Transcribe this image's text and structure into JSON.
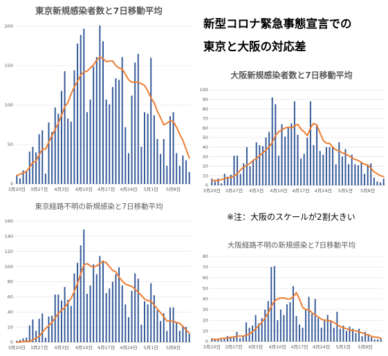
{
  "headline": {
    "line1": "新型コロナ緊急事態宣言での",
    "line2": "東京と大阪の対応差"
  },
  "note": "※注：大阪のスケールが2割大きい",
  "chart_data": [
    {
      "id": "tokyo-new",
      "type": "bar",
      "title": "東京新規感染者数と7日移動平均",
      "ylim": [
        0,
        200
      ],
      "yticks": [
        "0",
        "50",
        "100",
        "150",
        "200"
      ],
      "xtick_labels": [
        "3月20日",
        "3月27日",
        "4月3日",
        "4月10日",
        "4月17日",
        "4月24日",
        "5月1日",
        "5月8日"
      ],
      "grid": true,
      "series": [
        {
          "type": "bar",
          "color": "#2f5597",
          "values": [
            11,
            7,
            17,
            16,
            41,
            47,
            40,
            63,
            68,
            13,
            78,
            66,
            97,
            89,
            118,
            143,
            83,
            79,
            144,
            178,
            189,
            197,
            91,
            107,
            149,
            161,
            201,
            181,
            107,
            101,
            123,
            134,
            132,
            161,
            72,
            39,
            112,
            154,
            165,
            47,
            91,
            89,
            160,
            87,
            57,
            38,
            57,
            23,
            86,
            91,
            39,
            23,
            36,
            30,
            15
          ]
        },
        {
          "type": "line",
          "color": "#ed7d31",
          "values": [
            11,
            12,
            14,
            16,
            21,
            27,
            29,
            37,
            44,
            44,
            53,
            61,
            69,
            77,
            87,
            98,
            103,
            114,
            123,
            130,
            138,
            142,
            143,
            147,
            151,
            157,
            161,
            159,
            155,
            156,
            156,
            150,
            147,
            146,
            139,
            132,
            129,
            129,
            129,
            127,
            125,
            118,
            109,
            103,
            92,
            84,
            75,
            77,
            80,
            79,
            72,
            63,
            55,
            44,
            33
          ]
        }
      ]
    },
    {
      "id": "tokyo-unknown",
      "type": "bar",
      "title": "東京経路不明の新規感染と7日移動平均",
      "ylim": [
        0,
        160
      ],
      "yticks": [
        "0",
        "20",
        "40",
        "60",
        "80",
        "100",
        "120",
        "140",
        "160"
      ],
      "xtick_labels": [
        "3月20日",
        "3月27日",
        "4月3日",
        "4月10日",
        "4月17日",
        "4月24日",
        "5月1日",
        "5月8日"
      ],
      "grid": true,
      "series": [
        {
          "type": "bar",
          "color": "#2f5597",
          "values": [
            2,
            3,
            5,
            6,
            22,
            30,
            15,
            31,
            38,
            6,
            34,
            35,
            63,
            63,
            55,
            73,
            56,
            48,
            91,
            105,
            128,
            149,
            64,
            75,
            103,
            90,
            114,
            108,
            65,
            71,
            80,
            90,
            99,
            75,
            50,
            33,
            68,
            91,
            84,
            23,
            54,
            50,
            78,
            62,
            42,
            28,
            38,
            15,
            46,
            46,
            27,
            15,
            21,
            20,
            11
          ]
        },
        {
          "type": "line",
          "color": "#ed7d31",
          "values": [
            0,
            0,
            1,
            1,
            1,
            3,
            5,
            8,
            13,
            18,
            22,
            26,
            32,
            38,
            42,
            46,
            52,
            58,
            67,
            78,
            90,
            102,
            104,
            101,
            99,
            101,
            104,
            107,
            105,
            100,
            95,
            93,
            86,
            81,
            77,
            75,
            74,
            70,
            66,
            62,
            57,
            55,
            54,
            49,
            44,
            39,
            34,
            28,
            28,
            28,
            26,
            25,
            21,
            16,
            12
          ]
        }
      ]
    },
    {
      "id": "osaka-new",
      "type": "bar",
      "title": "大阪新規感染者数と7日移動平均",
      "ylim": [
        0,
        100
      ],
      "yticks": [
        "0",
        "10",
        "20",
        "30",
        "40",
        "50",
        "60",
        "70",
        "80",
        "90",
        "100"
      ],
      "xtick_labels": [
        "3月20日",
        "3月27日",
        "4月3日",
        "4月10日",
        "4月17日",
        "4月24日",
        "5月1日",
        "5月8日"
      ],
      "grid": true,
      "series": [
        {
          "type": "bar",
          "color": "#2f5597",
          "values": [
            7,
            4,
            7,
            2,
            12,
            9,
            11,
            31,
            31,
            12,
            23,
            40,
            20,
            27,
            45,
            42,
            41,
            50,
            56,
            92,
            85,
            31,
            64,
            51,
            60,
            65,
            88,
            53,
            28,
            33,
            50,
            88,
            42,
            64,
            36,
            32,
            40,
            40,
            40,
            22,
            45,
            30,
            38,
            22,
            32,
            22,
            21,
            24,
            12,
            22,
            23,
            8,
            4,
            3,
            7
          ]
        },
        {
          "type": "line",
          "color": "#ed7d31",
          "values": [
            5,
            5,
            5,
            6,
            7,
            8,
            8,
            10,
            12,
            16,
            19,
            21,
            23,
            26,
            28,
            31,
            34,
            37,
            40,
            45,
            52,
            56,
            58,
            60,
            61,
            60,
            62,
            64,
            59,
            56,
            52,
            60,
            65,
            63,
            55,
            47,
            44,
            44,
            40,
            37,
            36,
            34,
            33,
            31,
            29,
            27,
            26,
            24,
            22,
            21,
            18,
            14,
            12,
            10,
            9
          ]
        }
      ]
    },
    {
      "id": "osaka-unknown",
      "type": "bar",
      "title": "大阪経路不明の新規感染と7日移動平均",
      "ylim": [
        0,
        80
      ],
      "yticks": [
        "0",
        "10",
        "20",
        "30",
        "40",
        "50",
        "60",
        "70",
        "80"
      ],
      "xtick_labels": [
        "3月20日",
        "3月27日",
        "4月3日",
        "4月10日",
        "4月17日",
        "4月24日",
        "5月1日",
        "5月8日"
      ],
      "grid": true,
      "series": [
        {
          "type": "bar",
          "color": "#2f5597",
          "values": [
            3,
            2,
            2,
            2,
            3,
            5,
            4,
            5,
            9,
            3,
            5,
            18,
            13,
            15,
            25,
            17,
            22,
            30,
            38,
            70,
            71,
            20,
            30,
            25,
            35,
            37,
            52,
            24,
            16,
            13,
            30,
            42,
            26,
            40,
            22,
            13,
            20,
            25,
            20,
            13,
            28,
            12,
            15,
            10,
            14,
            12,
            8,
            12,
            5,
            9,
            7,
            4,
            2,
            2,
            3
          ]
        },
        {
          "type": "line",
          "color": "#ed7d31",
          "values": [
            2,
            2,
            2,
            3,
            3,
            3,
            4,
            4,
            5,
            5,
            5,
            6,
            7,
            9,
            12,
            15,
            18,
            22,
            27,
            33,
            38,
            40,
            41,
            41,
            40,
            40,
            42,
            46,
            40,
            32,
            30,
            30,
            27,
            25,
            23,
            21,
            20,
            20,
            19,
            18,
            16,
            14,
            13,
            12,
            11,
            10,
            10,
            9,
            8,
            7,
            6,
            5,
            4,
            4,
            3
          ]
        }
      ]
    }
  ]
}
